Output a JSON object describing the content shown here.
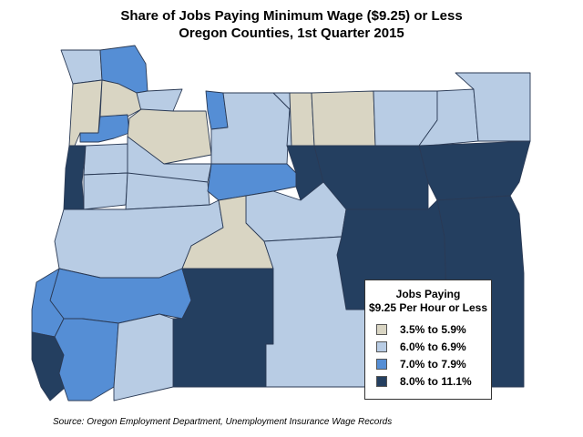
{
  "title_line1": "Share of Jobs Paying Minimum Wage ($9.25) or Less",
  "title_line2": "Oregon Counties, 1st Quarter 2015",
  "legend": {
    "title_line1": "Jobs Paying",
    "title_line2": "$9.25 Per Hour or Less",
    "items": [
      {
        "label": "3.5% to 5.9%",
        "color": "#d9d5c3"
      },
      {
        "label": "6.0% to 6.9%",
        "color": "#b8cce4"
      },
      {
        "label": "7.0% to 7.9%",
        "color": "#558ed5"
      },
      {
        "label": "8.0% to 11.1%",
        "color": "#243f60"
      }
    ]
  },
  "source": "Source: Oregon Employment Department, Unemployment Insurance Wage Records",
  "colors": {
    "outline": "#2a3a55",
    "background": "#ffffff"
  }
}
